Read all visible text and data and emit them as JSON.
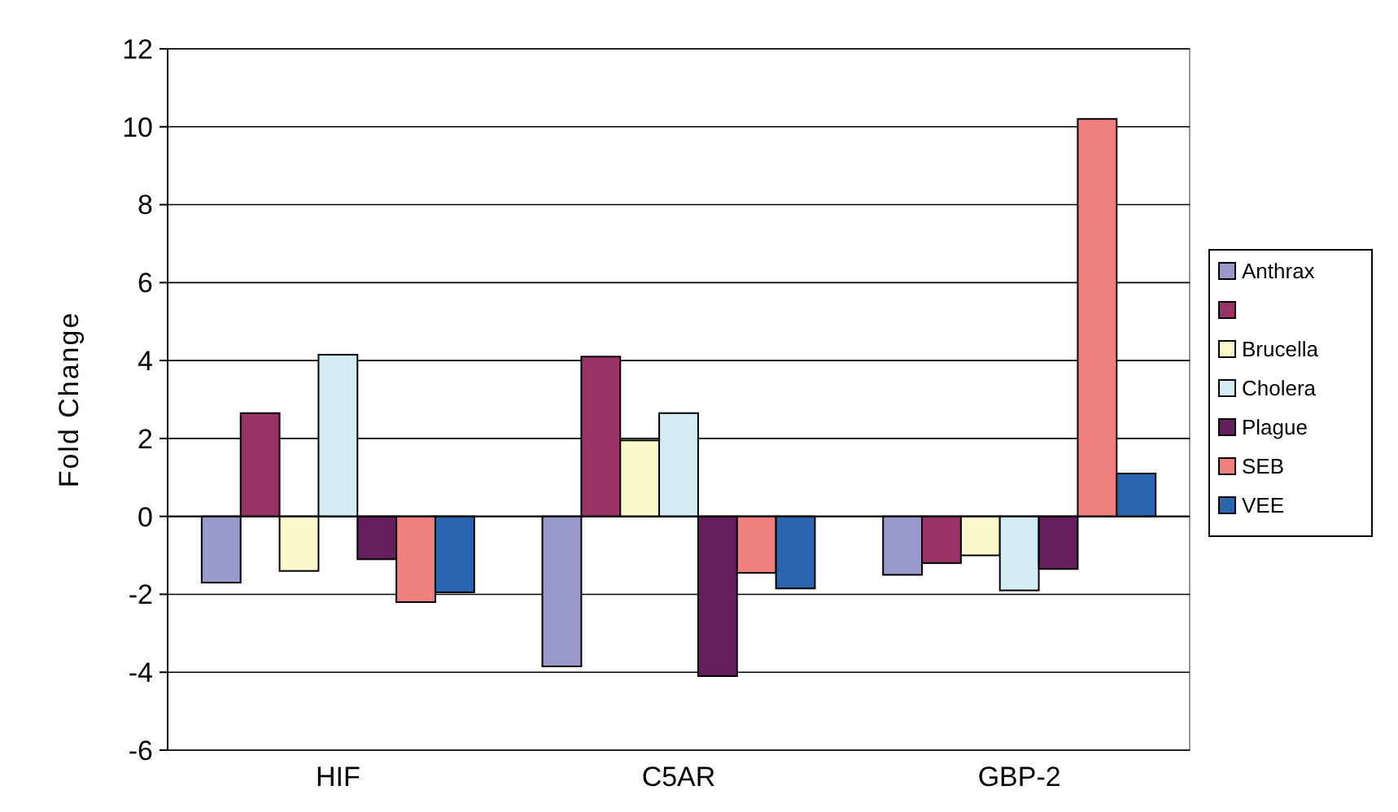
{
  "chart_data": {
    "type": "bar",
    "ylabel": "Fold Change",
    "categories": [
      "HIF",
      "C5AR",
      "GBP-2"
    ],
    "series": [
      {
        "name": "Anthrax",
        "color": "#9999cc",
        "values": [
          -1.7,
          -3.85,
          -1.5
        ]
      },
      {
        "color": "#993366",
        "values": [
          2.65,
          4.1,
          -1.2
        ]
      },
      {
        "name": "Brucella",
        "color": "#fbf8cc",
        "values": [
          -1.4,
          1.95,
          -1.0
        ]
      },
      {
        "name": "Cholera",
        "color": "#d4edf4",
        "values": [
          4.15,
          2.65,
          -1.9
        ]
      },
      {
        "name": "Plague",
        "color": "#661f5e",
        "values": [
          -1.1,
          -4.1,
          -1.35
        ]
      },
      {
        "name": "SEB",
        "color": "#f08080",
        "values": [
          -2.2,
          -1.45,
          10.2
        ]
      },
      {
        "name": "VEE",
        "color": "#2a66b0",
        "values": [
          -1.95,
          -1.85,
          1.1
        ]
      }
    ],
    "ylim": [
      -6,
      12
    ],
    "yticks": [
      -6,
      -4,
      -2,
      0,
      2,
      4,
      6,
      8,
      10,
      12
    ],
    "grid": "y",
    "legend": "right"
  }
}
